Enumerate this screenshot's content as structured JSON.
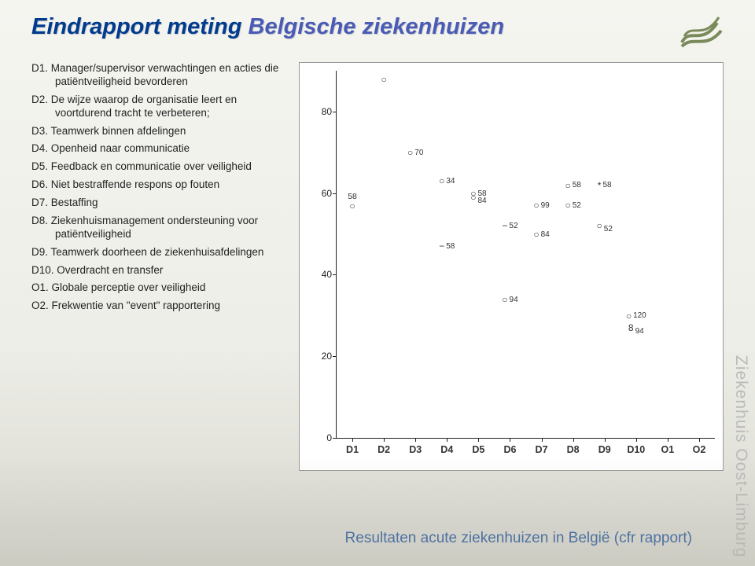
{
  "title_part1": "Eindrapport meting",
  "title_part2": " Belgische ziekenhuizen",
  "sidetext": "Ziekenhuis Oost-Limburg",
  "caption": "Resultaten acute ziekenhuizen in België (cfr rapport)",
  "items": [
    "D1. Manager/supervisor verwachtingen en acties die patiëntveiligheid bevorderen",
    "D2. De wijze waarop de organisatie leert en voortdurend tracht te verbeteren;",
    "D3. Teamwerk binnen afdelingen",
    "D4. Openheid naar communicatie",
    "D5. Feedback en communicatie over veiligheid",
    "D6. Niet bestraffende respons op fouten",
    "D7. Bestaffing",
    "D8. Ziekenhuismanagement ondersteuning voor patiëntveiligheid",
    "D9. Teamwerk doorheen de ziekenhuisafdelingen",
    "D10. Overdracht en transfer",
    "O1. Globale perceptie over veiligheid",
    "O2. Frekwentie van \"event\" rapportering"
  ],
  "chart": {
    "ylim": [
      0,
      90
    ],
    "yticks": [
      0,
      20,
      40,
      60,
      80
    ],
    "xlabels": [
      "D1",
      "D2",
      "D3",
      "D4",
      "D5",
      "D6",
      "D7",
      "D8",
      "D9",
      "D10",
      "O1",
      "O2"
    ],
    "points": [
      {
        "x": 0,
        "y": 58,
        "sym": "○",
        "lab": "58",
        "pos": "top"
      },
      {
        "x": 1,
        "y": 88,
        "sym": "○",
        "lab": "",
        "pos": "top"
      },
      {
        "x": 2,
        "y": 70,
        "sym": "○",
        "lab": "70",
        "pos": "right"
      },
      {
        "x": 3,
        "y": 63,
        "sym": "○",
        "lab": "34",
        "pos": "right"
      },
      {
        "x": 3,
        "y": 47,
        "sym": "−",
        "lab": "58",
        "pos": "right"
      },
      {
        "x": 4,
        "y": 60,
        "sym": "○",
        "lab": "58",
        "pos": "right"
      },
      {
        "x": 4,
        "y": 59,
        "sym": "○",
        "lab": "84",
        "pos": "rightlow"
      },
      {
        "x": 5,
        "y": 52,
        "sym": "−",
        "lab": "52",
        "pos": "right"
      },
      {
        "x": 5,
        "y": 34,
        "sym": "○",
        "lab": "94",
        "pos": "right"
      },
      {
        "x": 6,
        "y": 57,
        "sym": "○",
        "lab": "99",
        "pos": "right"
      },
      {
        "x": 6,
        "y": 50,
        "sym": "○",
        "lab": "84",
        "pos": "right"
      },
      {
        "x": 7,
        "y": 62,
        "sym": "○",
        "lab": "58",
        "pos": "right"
      },
      {
        "x": 7,
        "y": 57,
        "sym": "○",
        "lab": "52",
        "pos": "right"
      },
      {
        "x": 8,
        "y": 62,
        "sym": "*",
        "lab": "58",
        "pos": "right"
      },
      {
        "x": 8,
        "y": 52,
        "sym": "○",
        "lab": "52",
        "pos": "rightlow"
      },
      {
        "x": 9,
        "y": 30,
        "sym": "○",
        "lab": "120",
        "pos": "right"
      },
      {
        "x": 9,
        "y": 27,
        "sym": "8",
        "lab": "94",
        "pos": "rightlow"
      }
    ],
    "axis_color": "#222222",
    "bg": "#ffffff"
  },
  "logo_color": "#7a8a5a"
}
